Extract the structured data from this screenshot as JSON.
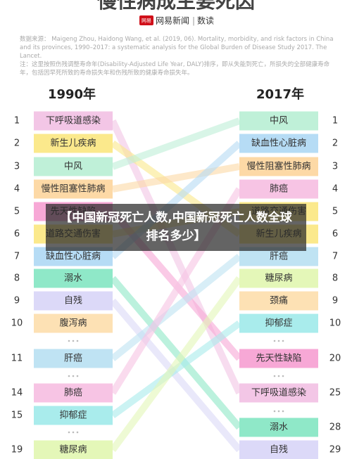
{
  "header": {
    "title": "慢性病成主要死因",
    "logo": "网易",
    "brand": "网易新闻",
    "section": "数读"
  },
  "source": "数据来源： Maigeng Zhou, Haidong Wang, et al. (2019, 06). Mortality, morbidity, and risk factors in China and its provinces, 1990–2017: a systematic analysis for the Global Burden of Disease Study 2017. The Lancet.",
  "note": "注：这里按照伤残调整寿命年(Disability-Adjusted Life Year, DALY)排序，即从失能到死亡，所损失的全部健康寿命年，包括因早死所致的寿命损失年和伤残所致的健康寿命损失年。",
  "left": {
    "year": "1990年",
    "items": [
      {
        "rank": 1,
        "label": "下呼吸道感染",
        "color": "#f3c6e6"
      },
      {
        "rank": 2,
        "label": "新生儿疾病",
        "color": "#fbe98c"
      },
      {
        "rank": 3,
        "label": "中风",
        "color": "#bff0d8"
      },
      {
        "rank": 4,
        "label": "慢性阻塞性肺病",
        "color": "#fdd9a6"
      },
      {
        "rank": 5,
        "label": "先天性缺陷",
        "color": "#f7a8d6"
      },
      {
        "rank": 6,
        "label": "道路交通伤害",
        "color": "#fbe98c"
      },
      {
        "rank": 7,
        "label": "缺血性心脏病",
        "color": "#b6dcf5"
      },
      {
        "rank": 8,
        "label": "溺水",
        "color": "#8fe8c8"
      },
      {
        "rank": 9,
        "label": "自残",
        "color": "#dcd9f8"
      },
      {
        "rank": 10,
        "label": "腹泻病",
        "color": "#fde1b4"
      },
      {
        "rank": 11,
        "label": "肝癌",
        "color": "#bfe3f3"
      },
      {
        "rank": 14,
        "label": "肺癌",
        "color": "#f7c4e4"
      },
      {
        "rank": 15,
        "label": "抑郁症",
        "color": "#a9ecec"
      },
      {
        "rank": 19,
        "label": "糖尿病",
        "color": "#e4f7b8"
      }
    ]
  },
  "right": {
    "year": "2017年",
    "items": [
      {
        "rank": 1,
        "label": "中风",
        "color": "#bff0d8"
      },
      {
        "rank": 2,
        "label": "缺血性心脏病",
        "color": "#b6dcf5"
      },
      {
        "rank": 3,
        "label": "慢性阻塞性肺病",
        "color": "#fdd9a6"
      },
      {
        "rank": 4,
        "label": "肺癌",
        "color": "#f7c4e4"
      },
      {
        "rank": 5,
        "label": "道路交通伤害",
        "color": "#fbe98c"
      },
      {
        "rank": 6,
        "label": "新生儿疾病",
        "color": "#fbe98c"
      },
      {
        "rank": 7,
        "label": "肝癌",
        "color": "#bfe3f3"
      },
      {
        "rank": 8,
        "label": "糖尿病",
        "color": "#e4f7b8"
      },
      {
        "rank": 9,
        "label": "颈痛",
        "color": "#fde1b4"
      },
      {
        "rank": 10,
        "label": "抑郁症",
        "color": "#a9ecec"
      },
      {
        "rank": 20,
        "label": "先天性缺陷",
        "color": "#f7a8d6"
      },
      {
        "rank": 25,
        "label": "下呼吸道感染",
        "color": "#f3c6e6"
      },
      {
        "rank": 28,
        "label": "溺水",
        "color": "#8fe8c8"
      },
      {
        "rank": 29,
        "label": "自残",
        "color": "#dcd9f8"
      }
    ]
  },
  "overlay": {
    "line1": "【中国新冠死亡人数,中国新冠死亡人数全球排名多少】"
  }
}
